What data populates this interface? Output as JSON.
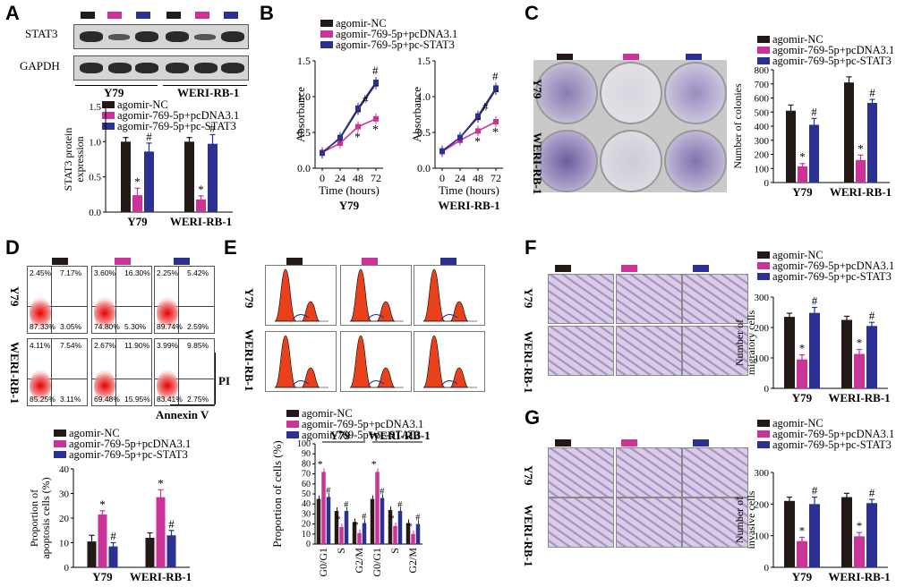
{
  "colors": {
    "nc": "#231916",
    "mimic_pcdna": "#cc3399",
    "mimic_stat3": "#2b3192"
  },
  "panel_labels": [
    "A",
    "B",
    "C",
    "D",
    "E",
    "F",
    "G"
  ],
  "legend": [
    "agomir-NC",
    "agomir-769-5p+pcDNA3.1",
    "agomir-769-5p+pc-STAT3"
  ],
  "legend_b": [
    "agomir-NC",
    "agomir-769-5p+pcDNA3.1",
    "agomir-769-5p+pc-STAT3"
  ],
  "blot": {
    "rows": [
      "STAT3",
      "GAPDH"
    ],
    "groups": [
      "Y79",
      "WERI-RB-1"
    ]
  },
  "image_rows": {
    "y79": "Y79",
    "weri": "WERI-RB-1"
  },
  "flow": {
    "quadrants": [
      [
        "2.45%",
        "7.17%",
        "87.33%",
        "3.05%"
      ],
      [
        "3.60%",
        "16.30%",
        "74.80%",
        "5.30%"
      ],
      [
        "2.25%",
        "5.42%",
        "89.74%",
        "2.59%"
      ],
      [
        "4.11%",
        "7.54%",
        "85.25%",
        "3.11%"
      ],
      [
        "2.67%",
        "11.90%",
        "69.48%",
        "15.95%"
      ],
      [
        "3.99%",
        "9.85%",
        "83.41%",
        "2.75%"
      ]
    ],
    "pi_label": "PI",
    "annexin_label": "Annexin V"
  },
  "chart_data": [
    {
      "id": "A",
      "type": "bar",
      "categories": [
        "Y79",
        "WERI-RB-1"
      ],
      "ylabel": "STAT3 protein expression",
      "ylim": [
        0,
        1.5
      ],
      "yticks": [
        "0.0",
        "0.5",
        "1.0",
        "1.5"
      ],
      "series": [
        {
          "name": "agomir-NC",
          "values": [
            1.0,
            1.0
          ],
          "err": [
            0.06,
            0.06
          ]
        },
        {
          "name": "agomir-769-5p+pcDNA3.1",
          "values": [
            0.24,
            0.18
          ],
          "err": [
            0.1,
            0.05
          ]
        },
        {
          "name": "agomir-769-5p+pc-STAT3",
          "values": [
            0.86,
            0.97
          ],
          "err": [
            0.12,
            0.13
          ]
        }
      ],
      "annotations": [
        [
          "*",
          "#"
        ],
        [
          "*",
          "#"
        ]
      ]
    },
    {
      "id": "B1",
      "type": "line",
      "title": "Y79",
      "xlabel": "Time (hours)",
      "ylabel": "Absorbance",
      "x": [
        0,
        24,
        48,
        72
      ],
      "xticks": [
        "0",
        "24",
        "48",
        "72"
      ],
      "ylim": [
        0,
        1.5
      ],
      "yticks": [
        "0.0",
        "0.5",
        "1.0",
        "1.5"
      ],
      "series": [
        {
          "name": "agomir-NC",
          "values": [
            0.22,
            0.42,
            0.82,
            1.18
          ]
        },
        {
          "name": "agomir-769-5p+pcDNA3.1",
          "values": [
            0.22,
            0.35,
            0.58,
            0.69
          ]
        },
        {
          "name": "agomir-769-5p+pc-STAT3",
          "values": [
            0.21,
            0.43,
            0.84,
            1.2
          ]
        }
      ],
      "annotations": [
        "#",
        "#",
        "*",
        "*"
      ]
    },
    {
      "id": "B2",
      "type": "line",
      "title": "WERI-RB-1",
      "xlabel": "Time (hours)",
      "ylabel": "Absorbance",
      "x": [
        0,
        24,
        48,
        72
      ],
      "xticks": [
        "0",
        "24",
        "48",
        "72"
      ],
      "ylim": [
        0,
        1.5
      ],
      "yticks": [
        "0.0",
        "0.5",
        "1.0",
        "1.5"
      ],
      "series": [
        {
          "name": "agomir-NC",
          "values": [
            0.24,
            0.43,
            0.71,
            1.1
          ]
        },
        {
          "name": "agomir-769-5p+pcDNA3.1",
          "values": [
            0.23,
            0.39,
            0.52,
            0.65
          ]
        },
        {
          "name": "agomir-769-5p+pc-STAT3",
          "values": [
            0.24,
            0.43,
            0.73,
            1.12
          ]
        }
      ],
      "annotations": [
        "#",
        "#",
        "*",
        "*"
      ]
    },
    {
      "id": "C",
      "type": "bar",
      "categories": [
        "Y79",
        "WERI-RB-1"
      ],
      "ylabel": "Number of colonies",
      "ylim": [
        0,
        800
      ],
      "yticks": [
        "0",
        "100",
        "200",
        "300",
        "400",
        "500",
        "600",
        "700",
        "800"
      ],
      "series": [
        {
          "name": "agomir-NC",
          "values": [
            510,
            710
          ],
          "err": [
            40,
            40
          ]
        },
        {
          "name": "agomir-769-5p+pcDNA3.1",
          "values": [
            115,
            160
          ],
          "err": [
            20,
            35
          ]
        },
        {
          "name": "agomir-769-5p+pc-STAT3",
          "values": [
            410,
            565
          ],
          "err": [
            45,
            25
          ]
        }
      ],
      "annotations": [
        [
          "*",
          "#"
        ],
        [
          "*",
          "#"
        ]
      ]
    },
    {
      "id": "D",
      "type": "bar",
      "categories": [
        "Y79",
        "WERI-RB-1"
      ],
      "ylabel": "Proportion of apoptosis cells (%)",
      "ylim": [
        0,
        40
      ],
      "yticks": [
        "0",
        "10",
        "20",
        "30",
        "40"
      ],
      "series": [
        {
          "name": "agomir-NC",
          "values": [
            10.5,
            12
          ],
          "err": [
            2.5,
            2
          ]
        },
        {
          "name": "agomir-769-5p+pcDNA3.1",
          "values": [
            21.5,
            28.5
          ],
          "err": [
            1.5,
            3
          ]
        },
        {
          "name": "agomir-769-5p+pc-STAT3",
          "values": [
            8.5,
            13
          ],
          "err": [
            1.5,
            2
          ]
        }
      ],
      "annotations": [
        [
          "*",
          "#"
        ],
        [
          "*",
          "#"
        ]
      ]
    },
    {
      "id": "E",
      "type": "bar",
      "groups": [
        "Y79",
        "WERI-RB-1"
      ],
      "categories": [
        "G0/G1",
        "S",
        "G2/M",
        "G0/G1",
        "S",
        "G2/M"
      ],
      "ylabel": "Proportion of cells (%)",
      "ylim": [
        0,
        100
      ],
      "yticks": [
        "0",
        "10",
        "20",
        "30",
        "40",
        "50",
        "60",
        "70",
        "80",
        "90",
        "100"
      ],
      "series": [
        {
          "name": "agomir-NC",
          "values": [
            45,
            33,
            22,
            45,
            34,
            21
          ]
        },
        {
          "name": "agomir-769-5p+pcDNA3.1",
          "values": [
            72,
            17,
            11,
            72,
            18,
            10
          ]
        },
        {
          "name": "agomir-769-5p+pc-STAT3",
          "values": [
            47,
            33,
            21,
            46,
            33,
            20
          ]
        }
      ],
      "annotations": [
        "*",
        "#",
        "*",
        "#",
        "*",
        "#",
        "*",
        "#",
        "*",
        "#",
        "*",
        "#"
      ]
    },
    {
      "id": "F",
      "type": "bar",
      "categories": [
        "Y79",
        "WERI-RB-1"
      ],
      "ylabel": "Number of migratory cells",
      "ylim": [
        0,
        300
      ],
      "yticks": [
        "0",
        "100",
        "200",
        "300"
      ],
      "series": [
        {
          "name": "agomir-NC",
          "values": [
            235,
            225
          ],
          "err": [
            12,
            12
          ]
        },
        {
          "name": "agomir-769-5p+pcDNA3.1",
          "values": [
            95,
            113
          ],
          "err": [
            15,
            15
          ]
        },
        {
          "name": "agomir-769-5p+pc-STAT3",
          "values": [
            248,
            205
          ],
          "err": [
            18,
            12
          ]
        }
      ],
      "annotations": [
        [
          "*",
          "#"
        ],
        [
          "*",
          "#"
        ]
      ]
    },
    {
      "id": "G",
      "type": "bar",
      "categories": [
        "Y79",
        "WERI-RB-1"
      ],
      "ylabel": "Number of invasive cells",
      "ylim": [
        0,
        300
      ],
      "yticks": [
        "0",
        "100",
        "200",
        "300"
      ],
      "series": [
        {
          "name": "agomir-NC",
          "values": [
            210,
            222
          ],
          "err": [
            12,
            12
          ]
        },
        {
          "name": "agomir-769-5p+pcDNA3.1",
          "values": [
            83,
            98
          ],
          "err": [
            12,
            12
          ]
        },
        {
          "name": "agomir-769-5p+pc-STAT3",
          "values": [
            200,
            203
          ],
          "err": [
            22,
            12
          ]
        }
      ],
      "annotations": [
        [
          "*",
          "#"
        ],
        [
          "*",
          "#"
        ]
      ]
    }
  ]
}
